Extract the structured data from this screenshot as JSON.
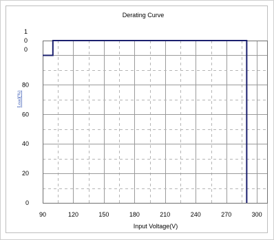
{
  "chart_data": {
    "type": "line",
    "title": "Derating Curve",
    "xlabel": "Input Voltage(V)",
    "ylabel": "Load(%)",
    "xlim": [
      90,
      310
    ],
    "ylim": [
      0,
      110
    ],
    "x_ticks": [
      "90",
      "120",
      "150",
      "180",
      "210",
      "240",
      "270",
      "300"
    ],
    "y_ticks": [
      "0",
      "20",
      "40",
      "60",
      "80"
    ],
    "y_top_tick_digits": [
      "1",
      "0",
      "0"
    ],
    "grid": true,
    "series": [
      {
        "color": "#1a1f6e",
        "x": [
          90,
          100,
          100,
          290,
          290
        ],
        "y": [
          100,
          100,
          110,
          110,
          0
        ]
      }
    ]
  }
}
